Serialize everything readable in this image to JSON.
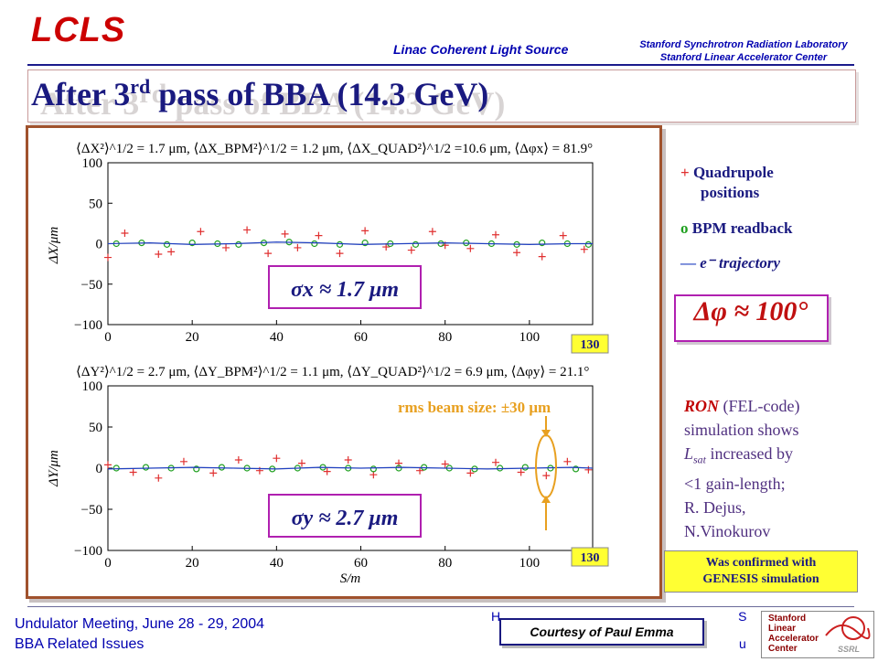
{
  "header": {
    "logo_text": "LCLS",
    "subtitle": "Linac Coherent Light Source",
    "lab_line1": "Stanford Synchrotron Radiation Laboratory",
    "lab_line2": "Stanford Linear Accelerator Center"
  },
  "slide": {
    "title_main": "After 3",
    "title_sup": "rd",
    "title_rest": " pass of BBA (14.3 GeV)"
  },
  "plot_top": {
    "stats_text": "⟨ΔX²⟩^1/2 = 1.7 μm, ⟨ΔX_BPM²⟩^1/2 = 1.2 μm, ⟨ΔX_QUAD²⟩^1/2 =10.6 μm, ⟨Δφx⟩ = 81.9°",
    "ylabel": "ΔX/μm",
    "sigma_label": "σx ≈ 1.7 μm",
    "badge": "130"
  },
  "plot_bottom": {
    "stats_text": "⟨ΔY²⟩^1/2 = 2.7 μm, ⟨ΔY_BPM²⟩^1/2 = 1.1 μm, ⟨ΔY_QUAD²⟩^1/2 = 6.9 μm, ⟨Δφy⟩ = 21.1°",
    "ylabel": "ΔY/μm",
    "xlabel": "S/m",
    "sigma_label": "σy ≈ 2.7 μm",
    "badge": "130",
    "rms_label": "rms beam size:   ±30 μm"
  },
  "legend": {
    "quad_marker": "+",
    "quad_label": "Quadrupole",
    "quad_label2": "positions",
    "bpm_marker": "o",
    "bpm_label": "BPM readback",
    "traj_marker": "—",
    "traj_label": "e⁻ trajectory"
  },
  "dphi_label": "Δφ ≈ 100°",
  "ron_note": {
    "ron": "RON",
    "line1_rest": " (FEL-code)",
    "line2": "simulation shows",
    "lsat": "L",
    "lsat_sub": "sat",
    "line3_rest": " increased by",
    "line4": "<1 gain-length;",
    "line5": "R. Dejus,",
    "line6": "N.Vinokurov"
  },
  "genesis_note": {
    "line1": "Was confirmed with",
    "line2": "GENESIS simulation"
  },
  "footer": {
    "meeting_line1": "Undulator Meeting, June 28 - 29, 2004",
    "meeting_line2": "BBA Related Issues",
    "heinz_partial": "H",
    "heinz_tail": "S",
    "courtesy": "Courtesy of Paul Emma",
    "email_tail": "u",
    "slac_line1": "Stanford",
    "slac_line2": "Linear",
    "slac_line3": "Accelerator",
    "slac_line4": "Center",
    "ssrl": "SSRL"
  },
  "colors": {
    "title": "#1a1a80",
    "quad": "#e03030",
    "bpm": "#20a020",
    "trajectory": "#2040c0",
    "frame": "#a0522d",
    "badge": "#ffff33"
  },
  "chart_data": [
    {
      "type": "scatter",
      "xlabel": "",
      "ylabel": "ΔX/μm",
      "xlim": [
        0,
        115
      ],
      "ylim": [
        -100,
        100
      ],
      "xticks": [
        0,
        20,
        40,
        60,
        80,
        100
      ],
      "yticks": [
        -100,
        -50,
        0,
        50,
        100
      ],
      "series": [
        {
          "marker": "+",
          "x": [
            0,
            4,
            12,
            15,
            22,
            28,
            33,
            38,
            42,
            45,
            50,
            55,
            61,
            66,
            72,
            77,
            80,
            86,
            92,
            97,
            103,
            108,
            113
          ],
          "y": [
            -17,
            13,
            -13,
            -10,
            15,
            -5,
            17,
            -12,
            12,
            -5,
            10,
            -12,
            16,
            -4,
            -8,
            15,
            -2,
            -6,
            11,
            -11,
            -16,
            10,
            -7
          ]
        },
        {
          "marker": "o",
          "x": [
            2,
            8,
            14,
            20,
            26,
            31,
            37,
            43,
            49,
            55,
            61,
            67,
            73,
            79,
            85,
            91,
            97,
            103,
            109,
            114
          ],
          "y": [
            0,
            1,
            -1,
            1,
            0,
            -1,
            1,
            2,
            0,
            -1,
            1,
            0,
            -1,
            0,
            1,
            0,
            -1,
            1,
            0,
            -1
          ]
        },
        {
          "marker": "line",
          "x": [
            0,
            10,
            20,
            30,
            40,
            50,
            60,
            70,
            80,
            90,
            100,
            110,
            115
          ],
          "y": [
            0,
            1,
            -1,
            0,
            2,
            1,
            -1,
            0,
            1,
            0,
            -1,
            0,
            0
          ]
        }
      ]
    },
    {
      "type": "scatter",
      "xlabel": "S/m",
      "ylabel": "ΔY/μm",
      "xlim": [
        0,
        115
      ],
      "ylim": [
        -100,
        100
      ],
      "xticks": [
        0,
        20,
        40,
        60,
        80,
        100
      ],
      "yticks": [
        -100,
        -50,
        0,
        50,
        100
      ],
      "series": [
        {
          "marker": "+",
          "x": [
            0,
            6,
            12,
            18,
            25,
            31,
            36,
            40,
            46,
            52,
            57,
            63,
            69,
            74,
            80,
            86,
            92,
            98,
            104,
            109,
            114
          ],
          "y": [
            4,
            -5,
            -12,
            8,
            -6,
            10,
            -3,
            12,
            6,
            -4,
            10,
            -8,
            6,
            -3,
            5,
            -6,
            7,
            -5,
            -9,
            8,
            -2
          ]
        },
        {
          "marker": "o",
          "x": [
            2,
            9,
            15,
            21,
            27,
            33,
            39,
            45,
            51,
            57,
            63,
            69,
            75,
            81,
            87,
            93,
            99,
            105,
            111
          ],
          "y": [
            0,
            1,
            0,
            -1,
            1,
            0,
            -1,
            0,
            1,
            0,
            -1,
            0,
            1,
            0,
            -1,
            0,
            1,
            0,
            -1
          ]
        },
        {
          "marker": "line",
          "x": [
            0,
            10,
            20,
            30,
            40,
            50,
            60,
            70,
            80,
            90,
            100,
            110,
            115
          ],
          "y": [
            -1,
            0,
            1,
            0,
            -1,
            1,
            0,
            1,
            0,
            -1,
            0,
            1,
            0
          ]
        }
      ]
    }
  ]
}
